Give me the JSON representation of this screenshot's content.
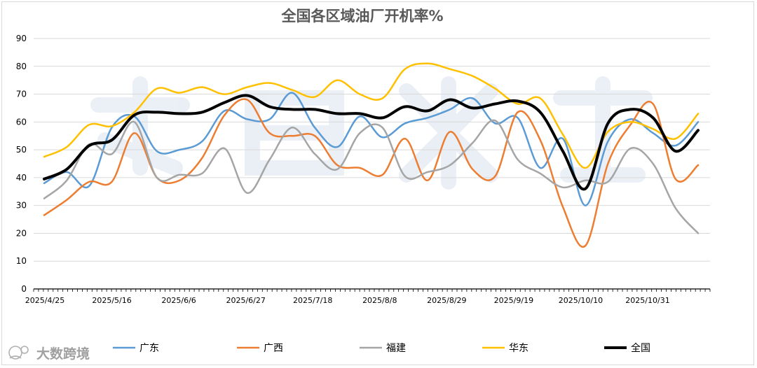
{
  "chart_data": {
    "type": "line",
    "title": "全国各区域油厂开机率%",
    "ylim": [
      0,
      90
    ],
    "yticks": [
      0,
      10,
      20,
      30,
      40,
      50,
      60,
      70,
      80,
      90
    ],
    "x_tick_labels": [
      "2025/4/25",
      "2025/5/16",
      "2025/6/6",
      "2025/6/27",
      "2025/7/18",
      "2025/8/8",
      "2025/8/29",
      "2025/9/19",
      "2025/10/10",
      "2025/10/31"
    ],
    "grid": "horizontal",
    "legend_position": "bottom",
    "smooth": true,
    "series": [
      {
        "name": "广东",
        "color": "#5B9BD5",
        "width": 2.5,
        "values": [
          38,
          42,
          37,
          58,
          62,
          49.5,
          50,
          53,
          64,
          61,
          61,
          70.5,
          58,
          51,
          62,
          54.5,
          59.5,
          61.5,
          64.5,
          68.5,
          59.5,
          61.5,
          43.5,
          54,
          30,
          53,
          61,
          56,
          51.5,
          60
        ]
      },
      {
        "name": "广西",
        "color": "#ED7D31",
        "width": 2.5,
        "values": [
          26.5,
          32,
          38.5,
          38.5,
          56,
          40,
          39,
          47,
          62.5,
          68,
          56,
          55,
          55,
          44.5,
          43.5,
          41,
          54,
          39,
          56.5,
          43,
          40.5,
          63.5,
          53.5,
          29.5,
          15.5,
          45,
          59,
          66.5,
          39.5,
          44.5
        ]
      },
      {
        "name": "福建",
        "color": "#A5A5A5",
        "width": 2.5,
        "values": [
          32.5,
          39,
          52,
          48.5,
          60,
          40,
          41,
          41.5,
          50.5,
          34.5,
          46.5,
          58,
          48.5,
          43,
          56,
          58,
          40.5,
          42,
          44.5,
          52.5,
          60.5,
          46.5,
          41.5,
          36.5,
          39,
          38.5,
          50.5,
          45,
          29,
          20
        ]
      },
      {
        "name": "华东",
        "color": "#FFC000",
        "width": 2.5,
        "values": [
          47.5,
          51,
          59,
          58.5,
          63.5,
          72,
          70.5,
          72.5,
          70,
          72.5,
          74,
          71.5,
          69,
          75,
          70,
          68.5,
          79,
          81,
          79,
          76.5,
          72,
          66.5,
          68.5,
          55.5,
          43.5,
          56.5,
          60,
          57.5,
          54,
          63
        ]
      },
      {
        "name": "全国",
        "color": "#000000",
        "width": 4,
        "values": [
          39.5,
          43,
          51.5,
          53.5,
          62.5,
          63.5,
          63,
          63.5,
          67,
          69.5,
          65.5,
          64.5,
          64.5,
          63,
          63,
          61.5,
          65.5,
          64,
          68,
          65,
          66.5,
          67.5,
          63.5,
          49.5,
          36,
          59.5,
          64.5,
          61.5,
          49.5,
          57
        ]
      }
    ]
  },
  "watermark": {
    "brand_text": "大数跨境",
    "icon": "brand-logo-icon"
  }
}
